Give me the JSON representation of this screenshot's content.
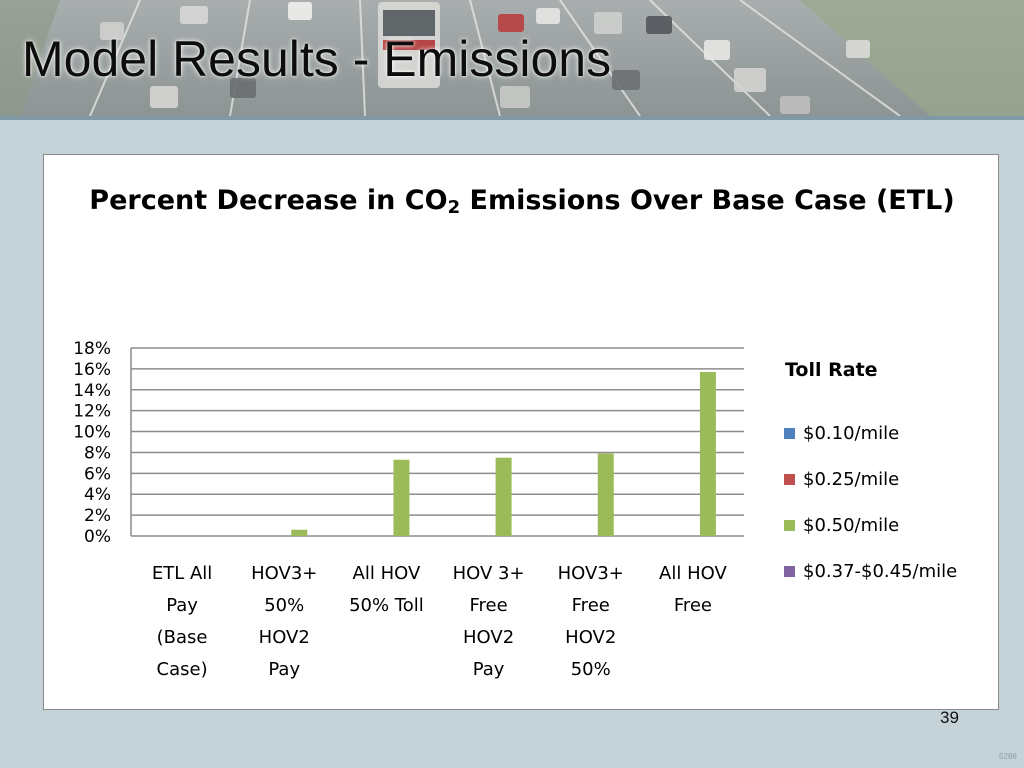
{
  "slide": {
    "title": "Model Results - Emissions",
    "page_number": "39",
    "corner_code": "5286"
  },
  "chart_data": {
    "type": "bar",
    "title_parts": [
      "Percent Decrease in CO",
      "2",
      " Emissions Over Base Case (ETL)"
    ],
    "categories": [
      [
        "ETL All",
        "Pay",
        "(Base",
        "Case)"
      ],
      [
        "HOV3+",
        "50%",
        "HOV2",
        "Pay"
      ],
      [
        "All HOV",
        "50% Toll"
      ],
      [
        "HOV 3+",
        "Free",
        "HOV2",
        "Pay"
      ],
      [
        "HOV3+",
        "Free",
        "HOV2",
        "50%"
      ],
      [
        "All HOV",
        "Free"
      ]
    ],
    "legend_title": "Toll Rate",
    "series": [
      {
        "name": "$0.10/mile",
        "color": "#4f81bd",
        "values": [
          0,
          0,
          0,
          0,
          0,
          0
        ]
      },
      {
        "name": "$0.25/mile",
        "color": "#c0504d",
        "values": [
          0,
          0,
          0,
          0,
          0,
          0
        ]
      },
      {
        "name": "$0.50/mile",
        "color": "#9bbb59",
        "values": [
          0,
          0.6,
          7.3,
          7.5,
          7.9,
          15.7
        ]
      },
      {
        "name": "$0.37-$0.45/mile",
        "color": "#8064a2",
        "values": [
          0,
          0,
          0,
          0,
          0,
          0
        ]
      }
    ],
    "yticks": [
      "0%",
      "2%",
      "4%",
      "6%",
      "8%",
      "10%",
      "12%",
      "14%",
      "16%",
      "18%"
    ],
    "ylim": [
      0,
      18
    ],
    "ystep": 2,
    "grid": true,
    "legend_position": "right"
  }
}
